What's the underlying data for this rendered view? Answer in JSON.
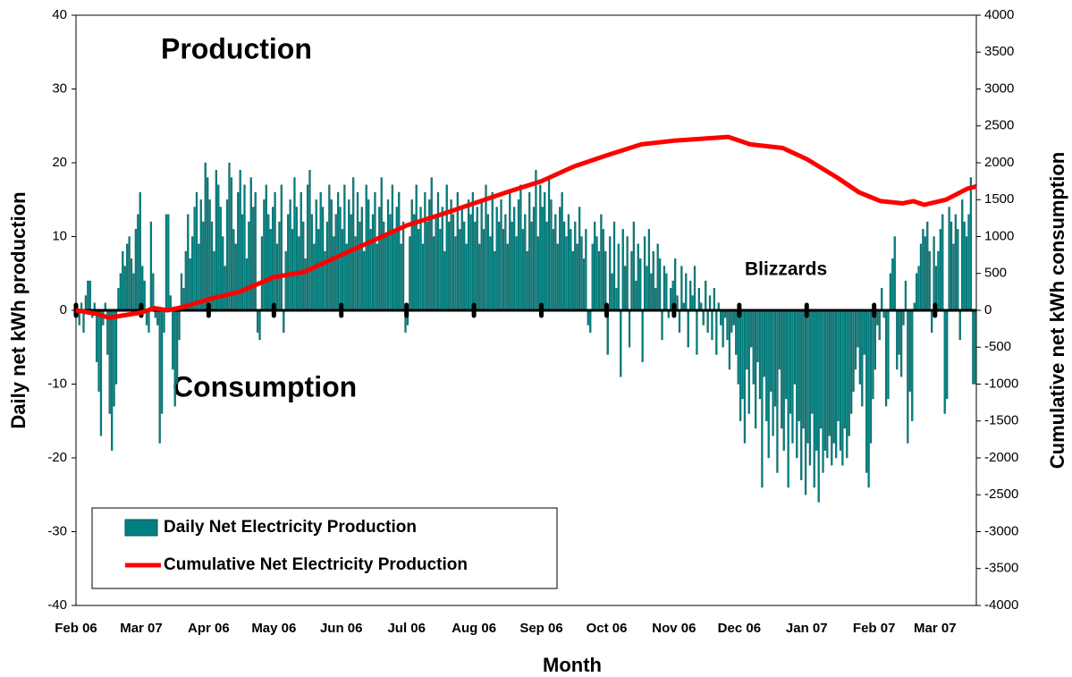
{
  "chart_data": {
    "type": "bar",
    "ylabel": "Daily net kWh production",
    "y2label": "Cumulative net kWh consumption",
    "xlabel": "Month",
    "annotations": [
      "Production",
      "Consumption",
      "Blizzards"
    ],
    "xlim": [
      0,
      414
    ],
    "xticks": [
      {
        "value": 0,
        "label": "Feb 06"
      },
      {
        "value": 30,
        "label": "Mar 07"
      },
      {
        "value": 61,
        "label": "Apr 06"
      },
      {
        "value": 91,
        "label": "May 06"
      },
      {
        "value": 122,
        "label": "Jun 06"
      },
      {
        "value": 152,
        "label": "Jul 06"
      },
      {
        "value": 183,
        "label": "Aug 06"
      },
      {
        "value": 214,
        "label": "Sep 06"
      },
      {
        "value": 244,
        "label": "Oct 06"
      },
      {
        "value": 275,
        "label": "Nov 06"
      },
      {
        "value": 305,
        "label": "Dec 06"
      },
      {
        "value": 336,
        "label": "Jan 07"
      },
      {
        "value": 367,
        "label": "Feb 07"
      },
      {
        "value": 395,
        "label": "Mar 07"
      }
    ],
    "ylim": [
      -40,
      40
    ],
    "yticks": [
      -40,
      -30,
      -20,
      -10,
      0,
      10,
      20,
      30,
      40
    ],
    "y2lim": [
      -4000,
      4000
    ],
    "y2ticks": [
      -4000,
      -3500,
      -3000,
      -2500,
      -2000,
      -1500,
      -1000,
      -500,
      0,
      500,
      1000,
      1500,
      2000,
      2500,
      3000,
      3500,
      4000
    ],
    "legend": "lower left",
    "series": [
      {
        "name": "Daily Net Electricity Production",
        "type": "bar",
        "color": "#008080",
        "values": [
          0,
          -2,
          1,
          -3,
          2,
          4,
          4,
          -1,
          1,
          -7,
          -11,
          -17,
          -2,
          1,
          -6,
          -14,
          -19,
          -13,
          -10,
          3,
          5,
          8,
          6,
          9,
          10,
          7,
          5,
          11,
          13,
          16,
          6,
          4,
          -2,
          -3,
          12,
          5,
          -1,
          -2,
          -18,
          -14,
          -3,
          13,
          13,
          2,
          -8,
          -13,
          -10,
          -4,
          5,
          3,
          8,
          13,
          7,
          10,
          14,
          16,
          9,
          15,
          12,
          20,
          18,
          15,
          12,
          8,
          19,
          17,
          14,
          10,
          6,
          15,
          20,
          18,
          11,
          9,
          16,
          19,
          13,
          17,
          7,
          12,
          18,
          14,
          16,
          -3,
          -4,
          10,
          15,
          17,
          13,
          11,
          14,
          16,
          9,
          12,
          17,
          -3,
          8,
          13,
          15,
          11,
          18,
          14,
          10,
          16,
          12,
          7,
          17,
          19,
          13,
          9,
          15,
          11,
          16,
          14,
          8,
          12,
          17,
          15,
          10,
          13,
          16,
          14,
          11,
          17,
          9,
          15,
          13,
          18,
          10,
          16,
          12,
          14,
          8,
          17,
          15,
          11,
          13,
          16,
          9,
          14,
          18,
          12,
          10,
          15,
          13,
          17,
          11,
          14,
          16,
          9,
          12,
          -3,
          -2,
          10,
          15,
          13,
          17,
          11,
          14,
          9,
          16,
          12,
          15,
          18,
          10,
          13,
          16,
          11,
          14,
          8,
          17,
          12,
          15,
          13,
          10,
          16,
          11,
          14,
          12,
          9,
          15,
          13,
          16,
          12,
          14,
          9,
          15,
          11,
          17,
          13,
          10,
          16,
          8,
          14,
          12,
          15,
          11,
          13,
          9,
          16,
          12,
          14,
          10,
          15,
          17,
          11,
          13,
          8,
          16,
          12,
          14,
          19,
          10,
          17,
          14,
          16,
          12,
          18,
          15,
          11,
          13,
          9,
          14,
          16,
          12,
          10,
          13,
          11,
          8,
          12,
          9,
          14,
          10,
          7,
          11,
          -2,
          -3,
          9,
          12,
          10,
          8,
          13,
          11,
          8,
          -6,
          10,
          5,
          12,
          3,
          9,
          -9,
          11,
          6,
          10,
          -5,
          8,
          12,
          4,
          9,
          7,
          -7,
          10,
          6,
          11,
          5,
          8,
          3,
          9,
          7,
          -4,
          6,
          5,
          -1,
          3,
          4,
          7,
          2,
          -3,
          6,
          1,
          5,
          -5,
          4,
          2,
          6,
          -6,
          3,
          1,
          -2,
          4,
          -3,
          2,
          -4,
          3,
          -6,
          1,
          -2,
          -5,
          -1,
          -4,
          -8,
          -3,
          -2,
          -6,
          -10,
          -15,
          -12,
          -18,
          -8,
          -14,
          -5,
          -10,
          -16,
          -7,
          -12,
          -24,
          -9,
          -15,
          -20,
          -11,
          -17,
          -13,
          -22,
          -8,
          -16,
          -19,
          -12,
          -24,
          -14,
          -18,
          -10,
          -20,
          -15,
          -23,
          -16,
          -25,
          -18,
          -21,
          -14,
          -24,
          -19,
          -26,
          -16,
          -22,
          -19,
          -20,
          -17,
          -21,
          -18,
          -20,
          -15,
          -19,
          -21,
          -16,
          -20,
          -17,
          -14,
          -11,
          -8,
          -5,
          -10,
          -13,
          -6,
          -22,
          -24,
          -18,
          -12,
          -8,
          -2,
          -4,
          3,
          -1,
          -13,
          -12,
          5,
          7,
          10,
          -8,
          -6,
          -9,
          -2,
          4,
          -18,
          -11,
          -15,
          1,
          5,
          6,
          9,
          11,
          10,
          12,
          8,
          -3,
          10,
          6,
          8,
          11,
          13,
          -14,
          -12,
          14,
          12,
          9,
          13,
          11,
          -4,
          15,
          12,
          10,
          13,
          18,
          -10,
          -10
        ]
      },
      {
        "name": "Cumulative Net Electricity Production",
        "type": "line",
        "color": "#ff0000",
        "axis": "y2",
        "x": [
          0,
          10,
          15,
          30,
          36,
          42,
          50,
          61,
          75,
          91,
          105,
          122,
          137,
          152,
          168,
          183,
          198,
          214,
          229,
          244,
          260,
          275,
          290,
          300,
          310,
          325,
          336,
          350,
          360,
          370,
          380,
          385,
          390,
          400,
          410,
          414
        ],
        "values": [
          0,
          -50,
          -100,
          -30,
          30,
          0,
          50,
          150,
          250,
          450,
          520,
          750,
          950,
          1150,
          1300,
          1450,
          1600,
          1750,
          1950,
          2100,
          2250,
          2300,
          2330,
          2350,
          2250,
          2200,
          2050,
          1800,
          1600,
          1480,
          1450,
          1480,
          1430,
          1500,
          1650,
          1680
        ]
      }
    ]
  }
}
